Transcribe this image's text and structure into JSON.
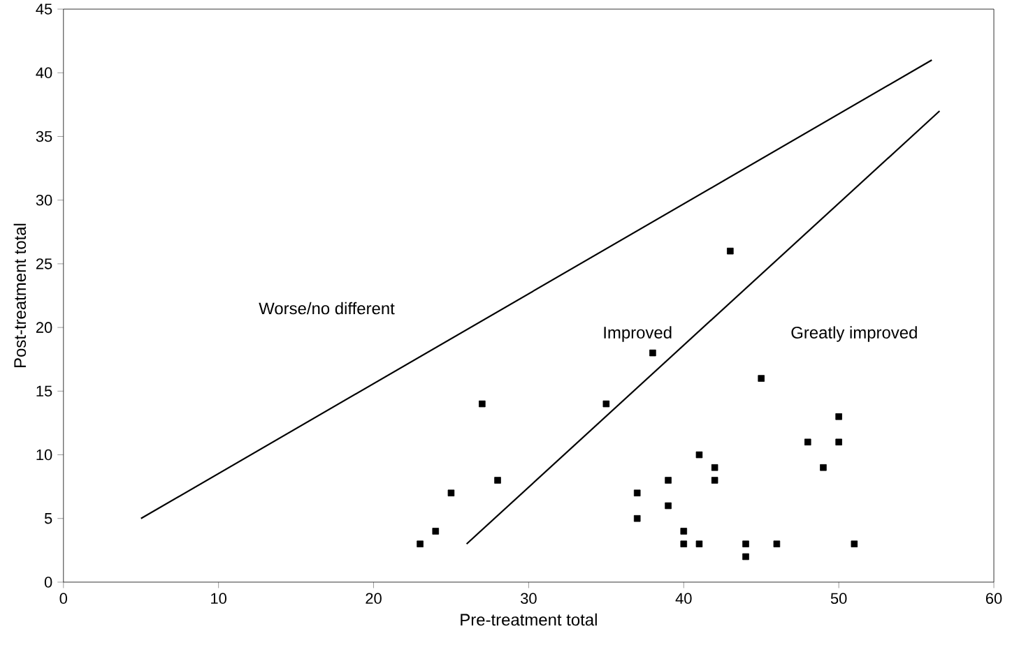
{
  "chart_data": {
    "type": "scatter",
    "xlabel": "Pre-treatment total",
    "ylabel": "Post-treatment total",
    "xlim": [
      0,
      60
    ],
    "ylim": [
      0,
      45
    ],
    "xticks": [
      0,
      10,
      20,
      30,
      40,
      50,
      60
    ],
    "yticks": [
      0,
      5,
      10,
      15,
      20,
      25,
      30,
      35,
      40,
      45
    ],
    "marker": "square",
    "grid": false,
    "series": [
      {
        "color": "#000000",
        "x": [
          23,
          24,
          25,
          27,
          28,
          35,
          38,
          43,
          37,
          37,
          39,
          39,
          40,
          40,
          41,
          41,
          42,
          42,
          44,
          44,
          45,
          46,
          48,
          49,
          50,
          50,
          51
        ],
        "values": [
          3,
          4,
          7,
          14,
          8,
          14,
          18,
          26,
          7,
          5,
          8,
          6,
          4,
          3,
          10,
          3,
          9,
          8,
          3,
          2,
          16,
          3,
          11,
          9,
          13,
          11,
          3
        ]
      },
      {
        "type": "line",
        "color": "#000000",
        "marker": "none",
        "x": [
          5,
          56
        ],
        "values": [
          5,
          41
        ]
      },
      {
        "type": "line",
        "color": "#000000",
        "marker": "none",
        "x": [
          26,
          56.5
        ],
        "values": [
          3,
          37
        ]
      }
    ],
    "annotations": [
      "Worse/no different",
      "Improved",
      "Greatly improved"
    ]
  }
}
